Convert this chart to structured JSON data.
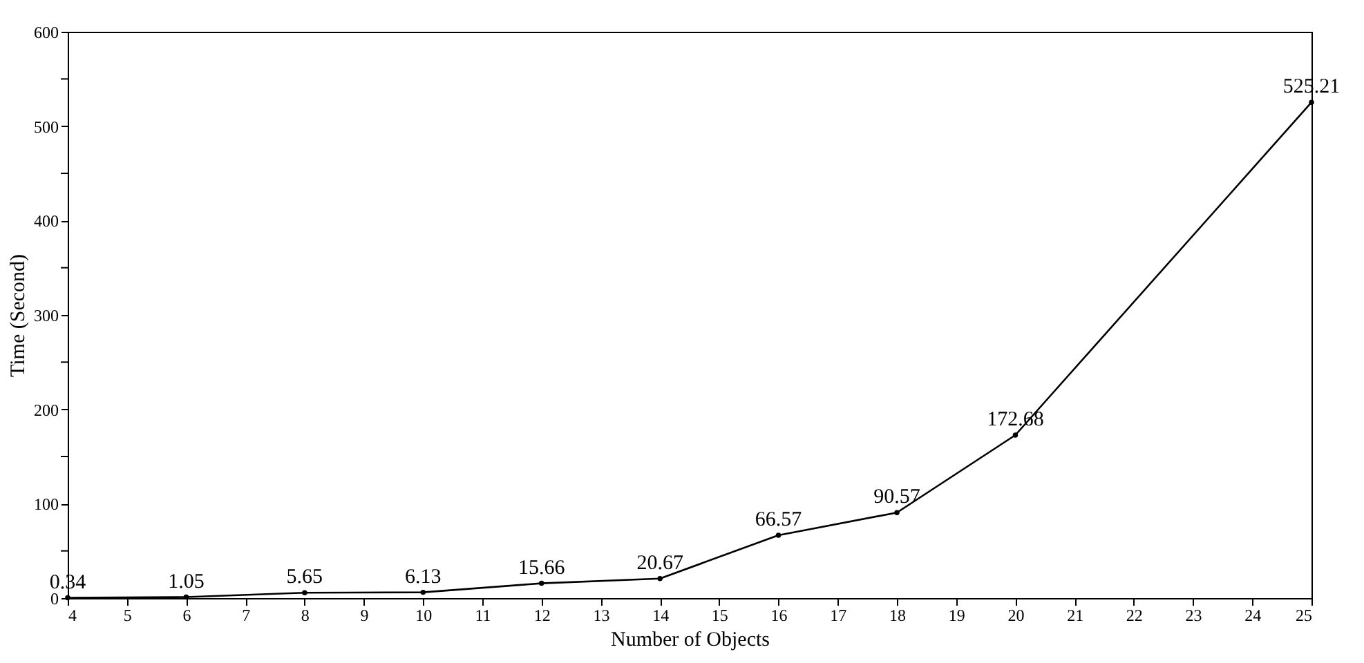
{
  "chart_data": {
    "type": "line",
    "xlabel": "Number of Objects",
    "ylabel": "Time (Second)",
    "x": [
      4,
      6,
      8,
      10,
      12,
      14,
      16,
      18,
      20,
      25
    ],
    "series": [
      {
        "color": "#000000",
        "values": [
          0.34,
          1.05,
          5.65,
          6.13,
          15.66,
          20.67,
          66.57,
          90.57,
          172.68,
          525.21
        ]
      }
    ],
    "xlim": [
      4,
      25
    ],
    "xticks": [
      4,
      5,
      6,
      7,
      8,
      9,
      10,
      11,
      12,
      13,
      14,
      15,
      16,
      17,
      18,
      19,
      20,
      21,
      22,
      23,
      24,
      25
    ],
    "ylim": [
      0,
      600
    ],
    "yticks": [
      0,
      {
        "value": 50,
        "label": null
      },
      100,
      {
        "value": 150,
        "label": null
      },
      200,
      {
        "value": 250,
        "label": null
      },
      300,
      {
        "value": 350,
        "label": null
      },
      400,
      {
        "value": 450,
        "label": null
      },
      500,
      {
        "value": 550,
        "label": null
      },
      600
    ],
    "grid": false,
    "marker": "circle",
    "line_style": "solid",
    "data_labels": true
  }
}
